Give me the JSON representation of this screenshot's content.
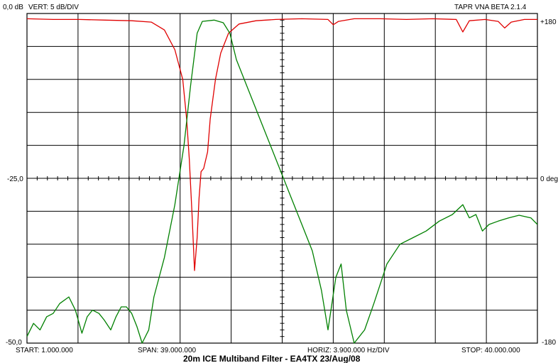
{
  "header": {
    "vert_label": "VERT:  5 dB/DIV",
    "app_version": "TAPR VNA BETA 2.1.4"
  },
  "left_axis": {
    "top": "0,0 dB",
    "mid": "-25,0",
    "bottom": "-50,0"
  },
  "right_axis": {
    "top": "+180",
    "mid": "0 deg",
    "bottom": "-180"
  },
  "footer": {
    "start": "START: 1.000.000",
    "span": "SPAN: 39.000.000",
    "horiz": "HORIZ: 3.900.000 Hz/DIV",
    "stop": "STOP: 40.000.000",
    "caption": "20m ICE Multiband Filter - EA4TX 23/Aug/08"
  },
  "chart_data": {
    "type": "line",
    "x_unit": "Hz",
    "xlim": [
      1000000,
      40000000
    ],
    "y_left_unit": "dB",
    "ylim_left": [
      -50,
      0
    ],
    "y_right_unit": "deg",
    "ylim_right": [
      -180,
      180
    ],
    "grid": true,
    "series": [
      {
        "color": "#e00000",
        "axis": "left",
        "points": [
          [
            1.0,
            -0.8
          ],
          [
            3.0,
            -0.9
          ],
          [
            5.0,
            -0.9
          ],
          [
            7.0,
            -1.0
          ],
          [
            9.0,
            -1.1
          ],
          [
            10.5,
            -1.3
          ],
          [
            11.5,
            -2.5
          ],
          [
            12.3,
            -5.5
          ],
          [
            12.9,
            -10
          ],
          [
            13.2,
            -16
          ],
          [
            13.4,
            -22
          ],
          [
            13.6,
            -30
          ],
          [
            13.8,
            -39
          ],
          [
            14.0,
            -34
          ],
          [
            14.15,
            -28
          ],
          [
            14.3,
            -24
          ],
          [
            14.5,
            -23.5
          ],
          [
            14.8,
            -21
          ],
          [
            15.0,
            -16
          ],
          [
            15.4,
            -10
          ],
          [
            15.8,
            -6
          ],
          [
            16.4,
            -3
          ],
          [
            17.2,
            -1.6
          ],
          [
            18.5,
            -1.1
          ],
          [
            20.0,
            -0.9
          ],
          [
            22.0,
            -0.8
          ],
          [
            24.0,
            -0.9
          ],
          [
            24.4,
            -1.7
          ],
          [
            24.8,
            -1.2
          ],
          [
            26,
            -0.8
          ],
          [
            28,
            -0.8
          ],
          [
            30,
            -0.9
          ],
          [
            32,
            -0.8
          ],
          [
            33.8,
            -0.9
          ],
          [
            34.3,
            -2.8
          ],
          [
            34.8,
            -1.1
          ],
          [
            36,
            -0.9
          ],
          [
            37,
            -1.2
          ],
          [
            37.5,
            -2.2
          ],
          [
            38,
            -1.3
          ],
          [
            39,
            -0.9
          ],
          [
            40,
            -0.9
          ]
        ]
      },
      {
        "color": "#008000",
        "axis": "left",
        "points": [
          [
            1.0,
            -49
          ],
          [
            1.5,
            -47
          ],
          [
            2.0,
            -48
          ],
          [
            2.5,
            -46
          ],
          [
            3.0,
            -45.5
          ],
          [
            3.5,
            -44
          ],
          [
            4.2,
            -43
          ],
          [
            4.7,
            -45
          ],
          [
            5.2,
            -48.5
          ],
          [
            5.6,
            -46
          ],
          [
            6.0,
            -45
          ],
          [
            6.5,
            -45.5
          ],
          [
            6.9,
            -46.5
          ],
          [
            7.4,
            -48
          ],
          [
            7.8,
            -46
          ],
          [
            8.2,
            -44.5
          ],
          [
            8.6,
            -44.5
          ],
          [
            9.0,
            -45.5
          ],
          [
            9.4,
            -47.5
          ],
          [
            9.8,
            -50
          ],
          [
            10.3,
            -48
          ],
          [
            10.7,
            -43
          ],
          [
            11.5,
            -37
          ],
          [
            12.3,
            -29
          ],
          [
            13.0,
            -20
          ],
          [
            13.5,
            -11
          ],
          [
            14.0,
            -3
          ],
          [
            14.4,
            -1.2
          ],
          [
            15.3,
            -1.0
          ],
          [
            16.0,
            -1.4
          ],
          [
            16.5,
            -3
          ],
          [
            17.0,
            -7
          ],
          [
            18.0,
            -12
          ],
          [
            19.0,
            -17
          ],
          [
            20.0,
            -22
          ],
          [
            21.0,
            -27
          ],
          [
            22.0,
            -32
          ],
          [
            22.8,
            -36
          ],
          [
            23.5,
            -42
          ],
          [
            24.0,
            -48
          ],
          [
            24.6,
            -40
          ],
          [
            25.0,
            -38
          ],
          [
            25.4,
            -45
          ],
          [
            26.0,
            -50
          ],
          [
            26.8,
            -48
          ],
          [
            27.5,
            -44
          ],
          [
            28.5,
            -38
          ],
          [
            29.5,
            -35
          ],
          [
            30.5,
            -34
          ],
          [
            31.5,
            -33
          ],
          [
            32.5,
            -31.5
          ],
          [
            33.5,
            -30.5
          ],
          [
            34.3,
            -29
          ],
          [
            34.8,
            -31
          ],
          [
            35.3,
            -30.5
          ],
          [
            35.8,
            -33
          ],
          [
            36.3,
            -32
          ],
          [
            37.0,
            -31.5
          ],
          [
            37.8,
            -31
          ],
          [
            38.6,
            -30.6
          ],
          [
            39.5,
            -31
          ],
          [
            40.0,
            -32
          ]
        ]
      }
    ]
  }
}
